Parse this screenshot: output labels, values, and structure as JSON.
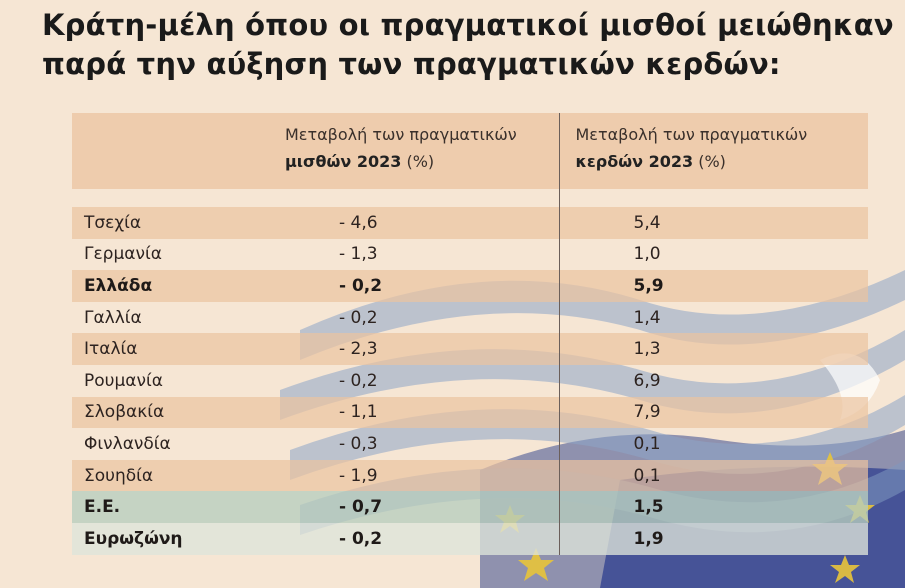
{
  "title": {
    "line1": "Κράτη-μέλη όπου οι πραγματικοί μισθοί μειώθηκαν",
    "line2": "παρά την αύξηση των πραγματικών κερδών:"
  },
  "table": {
    "headers": {
      "wages_pre": "Μεταβολή των πραγματικών",
      "wages_bold": "μισθών 2023",
      "wages_unit": " (%)",
      "profits_pre": "Μεταβολή των πραγματικών",
      "profits_bold": "κερδών 2023",
      "profits_unit": " (%)"
    },
    "rows": [
      {
        "country": "Τσεχία",
        "wages": "- 4,6",
        "profits": "5,4"
      },
      {
        "country": "Γερμανία",
        "wages": "- 1,3",
        "profits": "1,0"
      },
      {
        "country": "Ελλάδα",
        "wages": "- 0,2",
        "profits": "5,9"
      },
      {
        "country": "Γαλλία",
        "wages": "- 0,2",
        "profits": "1,4"
      },
      {
        "country": "Ιταλία",
        "wages": "- 2,3",
        "profits": "1,3"
      },
      {
        "country": "Ρουμανία",
        "wages": "- 0,2",
        "profits": "6,9"
      },
      {
        "country": "Σλοβακία",
        "wages": "- 1,1",
        "profits": "7,9"
      },
      {
        "country": "Φινλανδία",
        "wages": "- 0,3",
        "profits": "0,1"
      },
      {
        "country": "Σουηδία",
        "wages": "- 1,9",
        "profits": "0,1"
      },
      {
        "country": "Ε.Ε.",
        "wages": "- 0,7",
        "profits": "1,5"
      },
      {
        "country": "Ευρωζώνη",
        "wages": "- 0,2",
        "profits": "1,9"
      }
    ]
  },
  "colors": {
    "background": "#f6e6d4",
    "shaded_row": "#ebc3a0",
    "eu_row": "#b7cdbe",
    "flag_blue": "#2e3f8f",
    "star_yellow": "#e8c53a"
  }
}
